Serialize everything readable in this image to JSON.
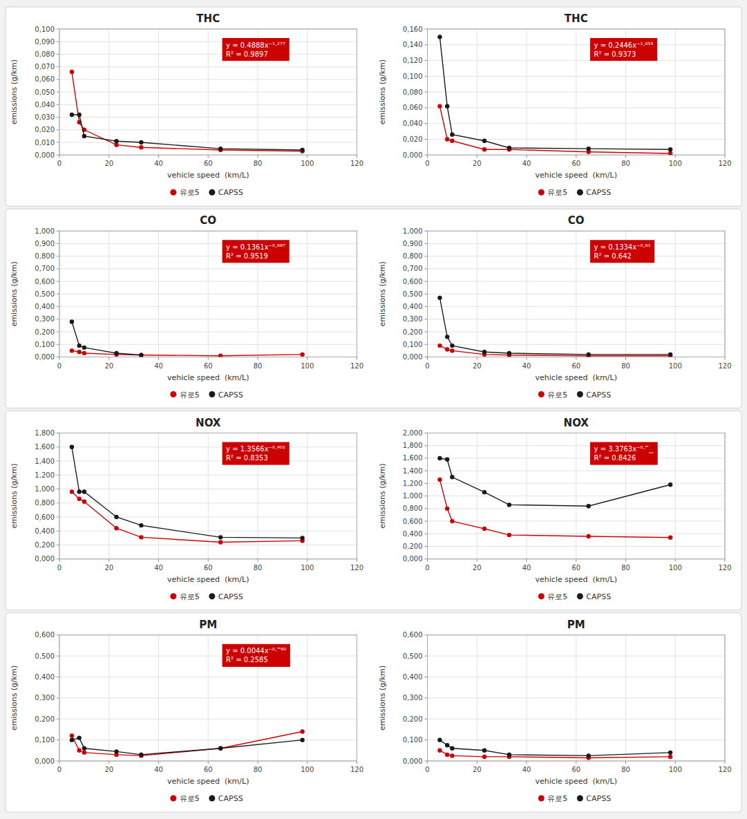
{
  "chart_data": [
    {
      "type": "line",
      "title": "THC",
      "x_label": "vehicle speed  (km/L)",
      "y_label": "emissions (g/km)",
      "x": [
        5,
        8,
        10,
        23,
        33,
        65,
        98
      ],
      "series": [
        {
          "name": "유로5",
          "color": "#cc0000",
          "marker": "o",
          "line_style": "solid",
          "values": [
            0.066,
            0.026,
            0.02,
            0.008,
            0.006,
            0.004,
            0.003
          ]
        },
        {
          "name": "CAPSS",
          "color": "#1a1a1a",
          "marker": "o",
          "line_style": "solid",
          "values": [
            0.032,
            0.032,
            0.015,
            0.011,
            0.01,
            0.005,
            0.004
          ]
        }
      ],
      "xlim": [
        0,
        120
      ],
      "xticks": [
        0,
        20,
        40,
        60,
        80,
        100,
        120
      ],
      "ylim": [
        0,
        0.1
      ],
      "yticks": [
        {
          "value": 0.0,
          "label": "0,000"
        },
        {
          "value": 0.01,
          "label": "0,010"
        },
        {
          "value": 0.02,
          "label": "0,020"
        },
        {
          "value": 0.03,
          "label": "0,030"
        },
        {
          "value": 0.04,
          "label": "0,040"
        },
        {
          "value": 0.05,
          "label": "0,050"
        },
        {
          "value": 0.06,
          "label": "0,060"
        },
        {
          "value": 0.07,
          "label": "0,070"
        },
        {
          "value": 0.08,
          "label": "0,080"
        },
        {
          "value": 0.09,
          "label": "0,090"
        },
        {
          "value": 0.1,
          "label": "0,100"
        }
      ],
      "annotations": [
        {
          "text": "y = 0.4888x⁻¹⋅²⁷⁷\nR² = 0.9897",
          "color": "#cc0000"
        }
      ],
      "grid": true,
      "legend": "bottom"
    },
    {
      "type": "line",
      "title": "THC",
      "x_label": "vehicle speed  (km/L)",
      "y_label": "emissions (g/km)",
      "x": [
        5,
        8,
        10,
        23,
        33,
        65,
        98
      ],
      "series": [
        {
          "name": "유로5",
          "color": "#cc0000",
          "marker": "o",
          "line_style": "solid",
          "values": [
            0.062,
            0.02,
            0.018,
            0.007,
            0.007,
            0.004,
            0.002
          ]
        },
        {
          "name": "CAPSS",
          "color": "#1a1a1a",
          "marker": "o",
          "line_style": "solid",
          "values": [
            0.15,
            0.062,
            0.026,
            0.018,
            0.009,
            0.008,
            0.007
          ]
        }
      ],
      "xlim": [
        0,
        120
      ],
      "xticks": [
        0,
        20,
        40,
        60,
        80,
        100,
        120
      ],
      "ylim": [
        0,
        0.16
      ],
      "yticks": [
        {
          "value": 0.0,
          "label": "0,000"
        },
        {
          "value": 0.02,
          "label": "0,020"
        },
        {
          "value": 0.04,
          "label": "0,040"
        },
        {
          "value": 0.06,
          "label": "0,060"
        },
        {
          "value": 0.08,
          "label": "0,080"
        },
        {
          "value": 0.1,
          "label": "0,100"
        },
        {
          "value": 0.12,
          "label": "0,120"
        },
        {
          "value": 0.14,
          "label": "0,140"
        },
        {
          "value": 0.16,
          "label": "0,160"
        }
      ],
      "annotations": [
        {
          "text": "y = 0.2446x⁻¹⋅⁰⁵⁵\nR² = 0.9373",
          "color": "#cc0000"
        }
      ],
      "grid": true,
      "legend": "bottom"
    },
    {
      "type": "line",
      "title": "CO",
      "x_label": "vehicle speed  (km/L)",
      "y_label": "emissions (g/km)",
      "x": [
        5,
        8,
        10,
        23,
        33,
        65,
        98
      ],
      "series": [
        {
          "name": "유로5",
          "color": "#cc0000",
          "marker": "o",
          "line_style": "solid",
          "values": [
            0.05,
            0.04,
            0.03,
            0.02,
            0.015,
            0.01,
            0.02
          ]
        },
        {
          "name": "CAPSS",
          "color": "#1a1a1a",
          "marker": "o",
          "line_style": "solid",
          "values": [
            0.28,
            0.09,
            0.075,
            0.03,
            0.015,
            null,
            null
          ]
        }
      ],
      "xlim": [
        0,
        120
      ],
      "xticks": [
        0,
        20,
        40,
        60,
        80,
        100,
        120
      ],
      "ylim": [
        0,
        1.0
      ],
      "yticks": [
        {
          "value": 0.0,
          "label": "0,000"
        },
        {
          "value": 0.1,
          "label": "0,100"
        },
        {
          "value": 0.2,
          "label": "0,200"
        },
        {
          "value": 0.3,
          "label": "0,300"
        },
        {
          "value": 0.4,
          "label": "0,400"
        },
        {
          "value": 0.5,
          "label": "0,500"
        },
        {
          "value": 0.6,
          "label": "0,600"
        },
        {
          "value": 0.7,
          "label": "0,700"
        },
        {
          "value": 0.8,
          "label": "0,800"
        },
        {
          "value": 0.9,
          "label": "0,900"
        },
        {
          "value": 1.0,
          "label": "1,000"
        }
      ],
      "annotations": [
        {
          "text": "y = 0.1361x⁻⁰⋅⁶⁹⁷\nR² = 0.9519",
          "color": "#cc0000"
        }
      ],
      "grid": true,
      "legend": "bottom"
    },
    {
      "type": "line",
      "title": "CO",
      "x_label": "vehicle speed  (km/L)",
      "y_label": "emissions (g/km)",
      "x": [
        5,
        8,
        10,
        23,
        33,
        65,
        98
      ],
      "series": [
        {
          "name": "유로5",
          "color": "#cc0000",
          "marker": "o",
          "line_style": "solid",
          "values": [
            0.09,
            0.06,
            0.05,
            0.02,
            0.015,
            0.01,
            0.01
          ]
        },
        {
          "name": "CAPSS",
          "color": "#1a1a1a",
          "marker": "o",
          "line_style": "solid",
          "values": [
            0.47,
            0.16,
            0.09,
            0.04,
            0.03,
            0.02,
            0.02
          ]
        }
      ],
      "xlim": [
        0,
        120
      ],
      "xticks": [
        0,
        20,
        40,
        60,
        80,
        100,
        120
      ],
      "ylim": [
        0,
        1.0
      ],
      "yticks": [
        {
          "value": 0.0,
          "label": "0,000"
        },
        {
          "value": 0.1,
          "label": "0,100"
        },
        {
          "value": 0.2,
          "label": "0,200"
        },
        {
          "value": 0.3,
          "label": "0,300"
        },
        {
          "value": 0.4,
          "label": "0,400"
        },
        {
          "value": 0.5,
          "label": "0,500"
        },
        {
          "value": 0.6,
          "label": "0,600"
        },
        {
          "value": 0.7,
          "label": "0,700"
        },
        {
          "value": 0.8,
          "label": "0,800"
        },
        {
          "value": 0.9,
          "label": "0,900"
        },
        {
          "value": 1.0,
          "label": "1,000"
        }
      ],
      "annotations": [
        {
          "text": "y = 0.1334x⁻⁰⋅⁶¹\nR² = 0.642",
          "color": "#cc0000"
        }
      ],
      "grid": true,
      "legend": "bottom"
    },
    {
      "type": "line",
      "title": "NOX",
      "x_label": "vehicle speed  (km/L)",
      "y_label": "emissions (g/km)",
      "x": [
        5,
        8,
        10,
        23,
        33,
        65,
        98
      ],
      "series": [
        {
          "name": "유로5",
          "color": "#cc0000",
          "marker": "o",
          "line_style": "solid",
          "values": [
            0.96,
            0.86,
            0.82,
            0.44,
            0.31,
            0.24,
            0.26
          ]
        },
        {
          "name": "CAPSS",
          "color": "#1a1a1a",
          "marker": "o",
          "line_style": "solid",
          "values": [
            1.6,
            0.96,
            0.96,
            0.6,
            0.48,
            0.31,
            0.3
          ]
        }
      ],
      "xlim": [
        0,
        120
      ],
      "xticks": [
        0,
        20,
        40,
        60,
        80,
        100,
        120
      ],
      "ylim": [
        0,
        1.8
      ],
      "yticks": [
        {
          "value": 0.0,
          "label": "0,000"
        },
        {
          "value": 0.2,
          "label": "0,200"
        },
        {
          "value": 0.4,
          "label": "0,400"
        },
        {
          "value": 0.6,
          "label": "0,600"
        },
        {
          "value": 0.8,
          "label": "0,800"
        },
        {
          "value": 1.0,
          "label": "1,000"
        },
        {
          "value": 1.2,
          "label": "1,200"
        },
        {
          "value": 1.4,
          "label": "1,400"
        },
        {
          "value": 1.6,
          "label": "1,600"
        },
        {
          "value": 1.8,
          "label": "1,800"
        }
      ],
      "annotations": [
        {
          "text": "y = 1.3566x⁻⁰⋅⁴⁰¹\nR² = 0.8353",
          "color": "#cc0000"
        }
      ],
      "grid": true,
      "legend": "bottom"
    },
    {
      "type": "line",
      "title": "NOX",
      "x_label": "vehicle speed  (km/L)",
      "y_label": "emissions (g/km)",
      "x": [
        5,
        8,
        10,
        23,
        33,
        65,
        98
      ],
      "series": [
        {
          "name": "유로5",
          "color": "#cc0000",
          "marker": "o",
          "line_style": "solid",
          "values": [
            1.26,
            0.8,
            0.6,
            0.48,
            0.38,
            0.36,
            0.34
          ]
        },
        {
          "name": "CAPSS",
          "color": "#1a1a1a",
          "marker": "o",
          "line_style": "solid",
          "values": [
            1.6,
            1.58,
            1.3,
            1.06,
            0.86,
            0.84,
            1.18
          ]
        }
      ],
      "xlim": [
        0,
        120
      ],
      "xticks": [
        0,
        20,
        40,
        60,
        80,
        100,
        120
      ],
      "ylim": [
        0,
        2.0
      ],
      "yticks": [
        {
          "value": 0.0,
          "label": "0,000"
        },
        {
          "value": 0.2,
          "label": "0,200"
        },
        {
          "value": 0.4,
          "label": "0,400"
        },
        {
          "value": 0.6,
          "label": "0,600"
        },
        {
          "value": 0.8,
          "label": "0,800"
        },
        {
          "value": 1.0,
          "label": "1,000"
        },
        {
          "value": 1.2,
          "label": "1,200"
        },
        {
          "value": 1.4,
          "label": "1,400"
        },
        {
          "value": 1.6,
          "label": "1,600"
        },
        {
          "value": 1.8,
          "label": "1,800"
        },
        {
          "value": 2.0,
          "label": "2,000"
        }
      ],
      "annotations": [
        {
          "text": "y = 3.3763x⁻⁰⋅‴‸‸\nR² = 0.8426",
          "color": "#cc0000"
        }
      ],
      "grid": true,
      "legend": "bottom"
    },
    {
      "type": "line",
      "title": "PM",
      "x_label": "vehicle speed  (km/L)",
      "y_label": "emissions (g/km)",
      "x": [
        5,
        8,
        10,
        23,
        33,
        65,
        98
      ],
      "series": [
        {
          "name": "유로5",
          "color": "#cc0000",
          "marker": "o",
          "line_style": "solid",
          "values": [
            0.12,
            0.05,
            0.04,
            0.03,
            0.025,
            0.06,
            0.14
          ]
        },
        {
          "name": "CAPSS",
          "color": "#1a1a1a",
          "marker": "o",
          "line_style": "solid",
          "values": [
            0.1,
            0.11,
            0.06,
            0.045,
            0.03,
            0.06,
            0.1
          ]
        }
      ],
      "xlim": [
        0,
        120
      ],
      "xticks": [
        0,
        20,
        40,
        60,
        80,
        100,
        120
      ],
      "ylim": [
        0,
        0.6
      ],
      "yticks": [
        {
          "value": 0.0,
          "label": "0,000"
        },
        {
          "value": 0.1,
          "label": "0,100"
        },
        {
          "value": 0.2,
          "label": "0,200"
        },
        {
          "value": 0.3,
          "label": "0,300"
        },
        {
          "value": 0.4,
          "label": "0,400"
        },
        {
          "value": 0.5,
          "label": "0,500"
        },
        {
          "value": 0.6,
          "label": "0,600"
        }
      ],
      "annotations": [
        {
          "text": "y = 0.0044x⁻⁰⋅‷⁹⁰\nR² = 0.2585",
          "color": "#cc0000"
        }
      ],
      "grid": true,
      "legend": "bottom"
    },
    {
      "type": "line",
      "title": "PM",
      "x_label": "vehicle speed  (km/L)",
      "y_label": "emissions (g/km)",
      "x": [
        5,
        8,
        10,
        23,
        33,
        65,
        98
      ],
      "series": [
        {
          "name": "유로5",
          "color": "#cc0000",
          "marker": "o",
          "line_style": "solid",
          "values": [
            0.05,
            0.03,
            0.025,
            0.02,
            0.02,
            0.015,
            0.02
          ]
        },
        {
          "name": "CAPSS",
          "color": "#1a1a1a",
          "marker": "o",
          "line_style": "solid",
          "values": [
            0.1,
            0.075,
            0.06,
            0.05,
            0.03,
            0.025,
            0.04
          ]
        }
      ],
      "xlim": [
        0,
        120
      ],
      "xticks": [
        0,
        20,
        40,
        60,
        80,
        100,
        120
      ],
      "ylim": [
        0,
        0.6
      ],
      "yticks": [
        {
          "value": 0.0,
          "label": "0,000"
        },
        {
          "value": 0.1,
          "label": "0,100"
        },
        {
          "value": 0.2,
          "label": "0,200"
        },
        {
          "value": 0.3,
          "label": "0,300"
        },
        {
          "value": 0.4,
          "label": "0,400"
        },
        {
          "value": 0.5,
          "label": "0,500"
        },
        {
          "value": 0.6,
          "label": "0,600"
        }
      ],
      "grid": true,
      "legend": "bottom"
    }
  ]
}
